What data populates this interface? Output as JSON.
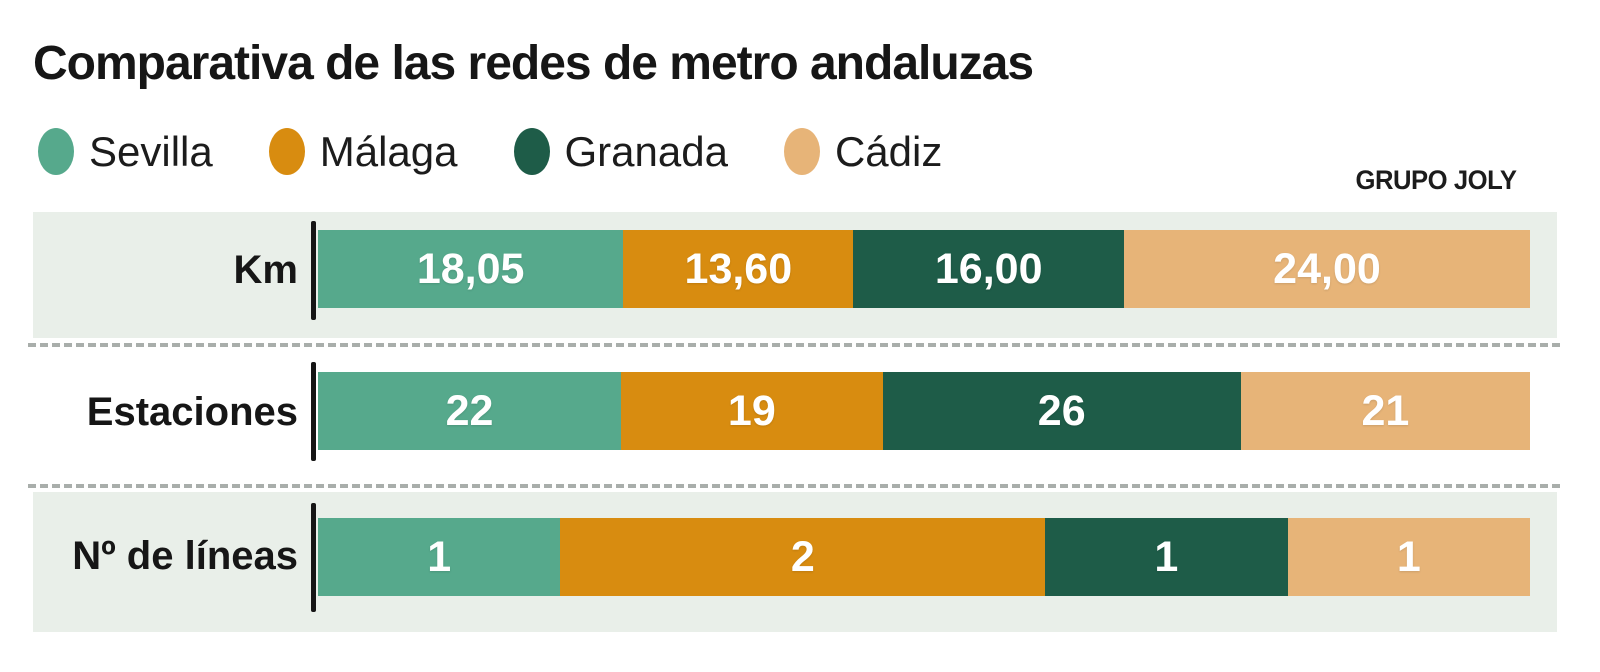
{
  "title": "Comparativa de las redes de metro andaluzas",
  "attribution": "GRUPO JOLY",
  "colors": {
    "sevilla": "#56a98c",
    "malaga": "#d88c10",
    "granada": "#1e5c48",
    "cadiz": "#e7b478",
    "row_band_bg": "#e9efe9",
    "separator": "#a9aeab",
    "text": "#161616",
    "value_text": "#ffffff"
  },
  "legend": [
    {
      "name": "Sevilla",
      "color": "#56a98c"
    },
    {
      "name": "Málaga",
      "color": "#d88c10"
    },
    {
      "name": "Granada",
      "color": "#1e5c48"
    },
    {
      "name": "Cádiz",
      "color": "#e7b478"
    }
  ],
  "chart_data": {
    "type": "bar",
    "variant": "horizontal-stacked-normalized",
    "title": "Comparativa de las redes de metro andaluzas",
    "legend_position": "top",
    "grid": false,
    "series_names": [
      "Sevilla",
      "Málaga",
      "Granada",
      "Cádiz"
    ],
    "series_colors": [
      "#56a98c",
      "#d88c10",
      "#1e5c48",
      "#e7b478"
    ],
    "rows": [
      {
        "label": "Km",
        "display_values": [
          "18,05",
          "13,60",
          "16,00",
          "24,00"
        ],
        "values": [
          18.05,
          13.6,
          16.0,
          24.0
        ],
        "banded": true
      },
      {
        "label": "Estaciones",
        "display_values": [
          "22",
          "19",
          "26",
          "21"
        ],
        "values": [
          22,
          19,
          26,
          21
        ],
        "banded": false
      },
      {
        "label": "Nº de líneas",
        "display_values": [
          "1",
          "2",
          "1",
          "1"
        ],
        "values": [
          1,
          2,
          1,
          1
        ],
        "banded": true
      }
    ]
  }
}
